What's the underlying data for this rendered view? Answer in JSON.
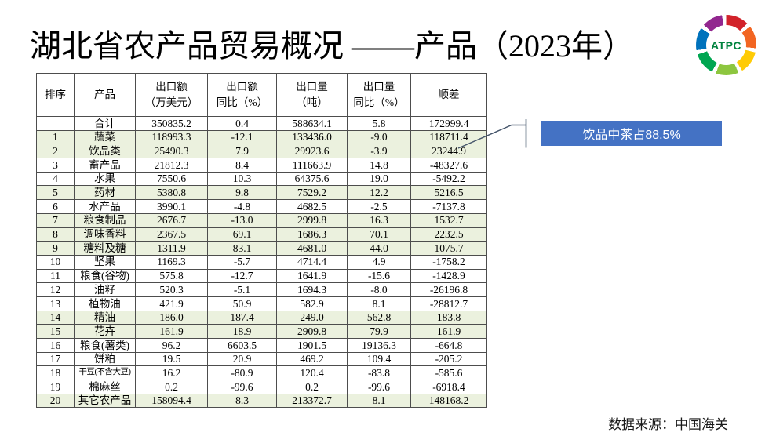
{
  "title": "湖北省农产品贸易概况 ——产品（2023年）",
  "logo": {
    "text": "ATPC",
    "text_color": "#00833e"
  },
  "callout": {
    "label": "饮品中茶占88.5%",
    "bg_color": "#4472C4",
    "text_color": "#FFFFFF",
    "connector_color": "#44546A"
  },
  "source": {
    "label": "数据来源：中国海关"
  },
  "table": {
    "highlight_color": "#EBF1DE",
    "headers": [
      "排序",
      "产品",
      "出口额\n（万美元）",
      "出口额\n同比（%）",
      "出口量\n（吨）",
      "出口量\n同比（%）",
      "顺差"
    ],
    "rows": [
      {
        "cells": [
          "",
          "合计",
          "350835.2",
          "0.4",
          "588634.1",
          "5.8",
          "172999.4"
        ],
        "highlight": false
      },
      {
        "cells": [
          "1",
          "蔬菜",
          "118993.3",
          "-12.1",
          "133436.0",
          "-9.0",
          "118711.4"
        ],
        "highlight": true
      },
      {
        "cells": [
          "2",
          "饮品类",
          "25490.3",
          "7.9",
          "29923.6",
          "-3.9",
          "23244.9"
        ],
        "highlight": true
      },
      {
        "cells": [
          "3",
          "畜产品",
          "21812.3",
          "8.4",
          "111663.9",
          "14.8",
          "-48327.6"
        ],
        "highlight": false
      },
      {
        "cells": [
          "4",
          "水果",
          "7550.6",
          "10.3",
          "64375.6",
          "19.0",
          "-5492.2"
        ],
        "highlight": false
      },
      {
        "cells": [
          "5",
          "药材",
          "5380.8",
          "9.8",
          "7529.2",
          "12.2",
          "5216.5"
        ],
        "highlight": true
      },
      {
        "cells": [
          "6",
          "水产品",
          "3990.1",
          "-4.8",
          "4682.5",
          "-2.5",
          "-7137.8"
        ],
        "highlight": false
      },
      {
        "cells": [
          "7",
          "粮食制品",
          "2676.7",
          "-13.0",
          "2999.8",
          "16.3",
          "1532.7"
        ],
        "highlight": true
      },
      {
        "cells": [
          "8",
          "调味香料",
          "2367.5",
          "69.1",
          "1686.3",
          "70.1",
          "2232.5"
        ],
        "highlight": true
      },
      {
        "cells": [
          "9",
          "糖料及糖",
          "1311.9",
          "83.1",
          "4681.0",
          "44.0",
          "1075.7"
        ],
        "highlight": true
      },
      {
        "cells": [
          "10",
          "坚果",
          "1169.3",
          "-5.7",
          "4714.4",
          "4.9",
          "-1758.2"
        ],
        "highlight": false
      },
      {
        "cells": [
          "11",
          "粮食(谷物)",
          "575.8",
          "-12.7",
          "1641.9",
          "-15.6",
          "-1428.9"
        ],
        "highlight": false
      },
      {
        "cells": [
          "12",
          "油籽",
          "520.3",
          "-5.1",
          "1694.3",
          "-8.0",
          "-26196.8"
        ],
        "highlight": false
      },
      {
        "cells": [
          "13",
          "植物油",
          "421.9",
          "50.9",
          "582.9",
          "8.1",
          "-28812.7"
        ],
        "highlight": false
      },
      {
        "cells": [
          "14",
          "精油",
          "186.0",
          "187.4",
          "249.0",
          "562.8",
          "183.8"
        ],
        "highlight": true
      },
      {
        "cells": [
          "15",
          "花卉",
          "161.9",
          "18.9",
          "2909.8",
          "79.9",
          "161.9"
        ],
        "highlight": true
      },
      {
        "cells": [
          "16",
          "粮食(薯类)",
          "96.2",
          "6603.5",
          "1901.5",
          "19136.3",
          "-664.8"
        ],
        "highlight": false
      },
      {
        "cells": [
          "17",
          "饼粕",
          "19.5",
          "20.9",
          "469.2",
          "109.4",
          "-205.2"
        ],
        "highlight": false
      },
      {
        "cells": [
          "18",
          "干豆(不含大豆)",
          "16.2",
          "-80.9",
          "120.4",
          "-83.8",
          "-585.6"
        ],
        "highlight": false
      },
      {
        "cells": [
          "19",
          "棉麻丝",
          "0.2",
          "-99.6",
          "0.2",
          "-99.6",
          "-6918.4"
        ],
        "highlight": false
      },
      {
        "cells": [
          "20",
          "其它农产品",
          "158094.4",
          "8.3",
          "213372.7",
          "8.1",
          "148168.2"
        ],
        "highlight": true
      }
    ]
  }
}
